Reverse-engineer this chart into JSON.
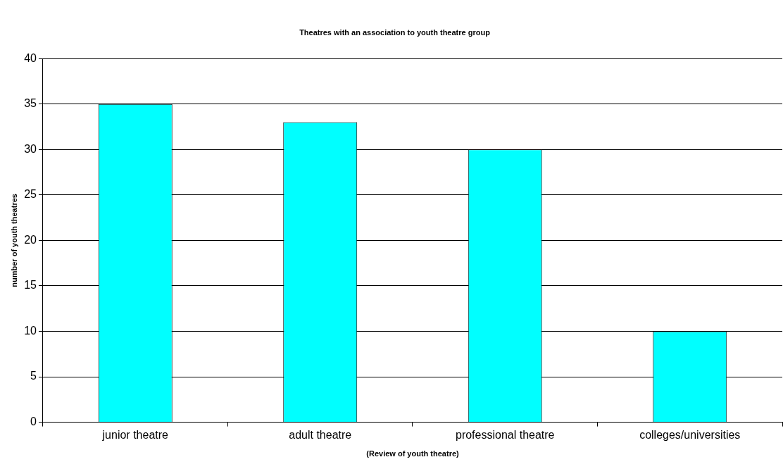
{
  "chart_data": {
    "type": "bar",
    "title": "Theatres with an association to youth theatre group",
    "xlabel": "(Review of youth theatre)",
    "ylabel": "number of youth theatres",
    "categories": [
      "junior theatre",
      "adult theatre",
      "professional theatre",
      "colleges/universities"
    ],
    "values": [
      35,
      33,
      30,
      10
    ],
    "color": "#00ffff",
    "ylim": [
      0,
      40
    ],
    "yticks": [
      0,
      5,
      10,
      15,
      20,
      25,
      30,
      35,
      40
    ],
    "grid": "y",
    "legend": false
  }
}
